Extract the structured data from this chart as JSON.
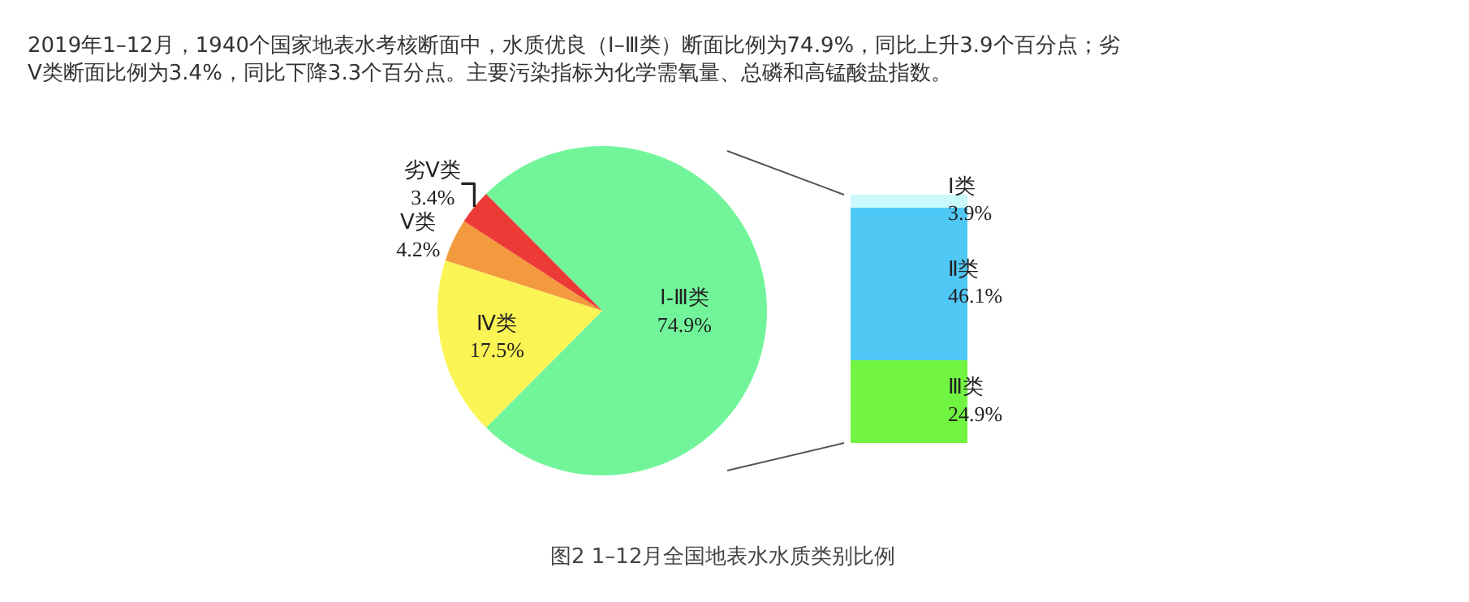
{
  "chart_data": [
    {
      "type": "pie",
      "categories": [
        "Ⅰ-Ⅲ类",
        "Ⅳ类",
        "Ⅴ类",
        "劣Ⅴ类"
      ],
      "values": [
        74.9,
        17.5,
        4.2,
        3.4
      ],
      "colors": [
        "#72f59a",
        "#fbf455",
        "#f39a3e",
        "#ec3a37"
      ],
      "value_labels": [
        "74.9%",
        "17.5%",
        "4.2%",
        "3.4%"
      ],
      "annotations": [
        "2019年1–12月，1940个国家地表水考核断面中，水质优良（Ⅰ–Ⅲ类）断面比例为74.9%，同比上升3.9个百分点；劣\nⅤ类断面比例为3.4%，同比下降3.3个百分点。主要污染指标为化学需氧量、总磷和高锰酸盐指数。",
        "图2 1–12月全国地表水水质类别比例"
      ]
    },
    {
      "type": "bar",
      "stacked": true,
      "categories": [
        null
      ],
      "tick_labels": false,
      "series": [
        {
          "name": "Ⅲ类",
          "color": "#72f542",
          "values": [
            24.9
          ],
          "value_labels": [
            "24.9%"
          ]
        },
        {
          "name": "Ⅱ类",
          "color": "#4fc8f6",
          "values": [
            46.1
          ],
          "value_labels": [
            "46.1%"
          ]
        },
        {
          "name": "Ⅰ类",
          "color": "#cbfafc",
          "values": [
            3.9
          ],
          "value_labels": [
            "3.9%"
          ]
        }
      ]
    }
  ]
}
